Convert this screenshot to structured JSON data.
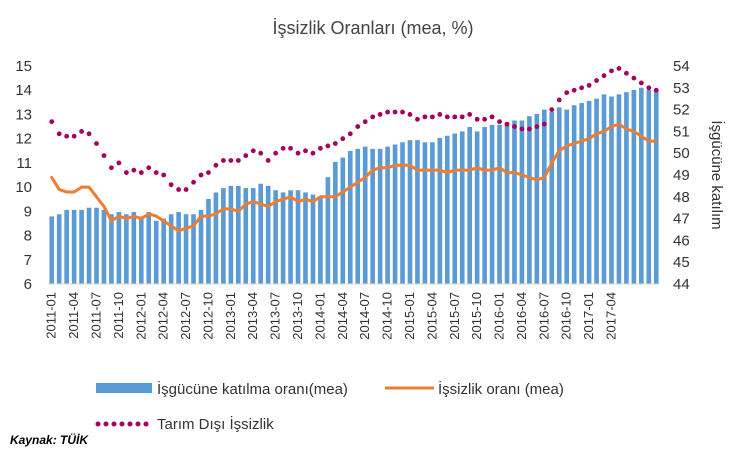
{
  "chart_data": {
    "type": "bar",
    "title": "İşsizlik Oranları (mea, %)",
    "y2label": "İşgücüne katılım",
    "source": "Kaynak: TÜİK",
    "ylim": [
      6,
      15
    ],
    "y2lim": [
      44,
      54
    ],
    "yticks": [
      6,
      7,
      8,
      9,
      10,
      11,
      12,
      13,
      14,
      15
    ],
    "y2ticks": [
      44,
      45,
      46,
      47,
      48,
      49,
      50,
      51,
      52,
      53,
      54
    ],
    "xtick_labels": [
      "2011-01",
      "2011-04",
      "2011-07",
      "2011-10",
      "2012-01",
      "2012-04",
      "2012-07",
      "2012-10",
      "2013-01",
      "2013-04",
      "2013-07",
      "2013-10",
      "2014-01",
      "2014-04",
      "2014-07",
      "2014-10",
      "2015-01",
      "2015-04",
      "2015-07",
      "2015-10",
      "2016-01",
      "2016-04",
      "2016-07",
      "2016-10",
      "2017-01",
      "2017-04"
    ],
    "legend": [
      {
        "name": "İşgücüne katılma oranı(mea)",
        "color": "#5b9bd5",
        "kind": "bar"
      },
      {
        "name": "İşsizlik oranı (mea)",
        "color": "#ed7d31",
        "kind": "line"
      },
      {
        "name": "Tarım Dışı İşsizlik",
        "color": "#a5005a",
        "kind": "dots"
      }
    ],
    "series": [
      {
        "name": "İşgücüne katılma oranı(mea)",
        "axis": "right",
        "kind": "bar",
        "values": [
          47.1,
          47.2,
          47.4,
          47.4,
          47.4,
          47.5,
          47.5,
          47.4,
          47.2,
          47.3,
          47.2,
          47.3,
          47.1,
          47.3,
          46.9,
          47.0,
          47.2,
          47.3,
          47.2,
          47.2,
          47.4,
          47.9,
          48.2,
          48.4,
          48.5,
          48.5,
          48.4,
          48.4,
          48.6,
          48.5,
          48.3,
          48.2,
          48.3,
          48.3,
          48.2,
          48.1,
          48.0,
          48.9,
          49.6,
          49.8,
          50.1,
          50.2,
          50.3,
          50.2,
          50.2,
          50.3,
          50.4,
          50.5,
          50.6,
          50.6,
          50.5,
          50.5,
          50.7,
          50.8,
          50.9,
          51.0,
          51.2,
          51.0,
          51.2,
          51.3,
          51.3,
          51.4,
          51.5,
          51.5,
          51.7,
          51.8,
          52.0,
          51.9,
          52.1,
          52.0,
          52.2,
          52.3,
          52.4,
          52.5,
          52.7,
          52.6,
          52.7,
          52.8,
          52.9,
          53.0,
          52.9,
          52.9
        ]
      },
      {
        "name": "İşsizlik oranı (mea)",
        "axis": "left",
        "kind": "line",
        "values": [
          10.4,
          9.9,
          9.8,
          9.8,
          10.0,
          10.0,
          9.6,
          9.2,
          8.6,
          8.8,
          8.7,
          8.8,
          8.7,
          8.9,
          8.8,
          8.6,
          8.4,
          8.2,
          8.3,
          8.4,
          8.8,
          8.8,
          8.9,
          9.1,
          9.1,
          9.0,
          9.3,
          9.4,
          9.3,
          9.2,
          9.4,
          9.5,
          9.6,
          9.4,
          9.5,
          9.4,
          9.6,
          9.6,
          9.6,
          9.8,
          10.0,
          10.2,
          10.4,
          10.7,
          10.8,
          10.8,
          10.9,
          10.9,
          10.9,
          10.7,
          10.7,
          10.7,
          10.7,
          10.6,
          10.7,
          10.7,
          10.7,
          10.8,
          10.7,
          10.7,
          10.8,
          10.6,
          10.6,
          10.5,
          10.4,
          10.3,
          10.4,
          11.0,
          11.5,
          11.7,
          11.8,
          11.9,
          12.0,
          12.2,
          12.3,
          12.5,
          12.6,
          12.4,
          12.3,
          12.1,
          11.9,
          11.9
        ]
      },
      {
        "name": "Tarım Dışı İşsizlik",
        "axis": "left",
        "kind": "dots",
        "values": [
          12.7,
          12.2,
          12.1,
          12.1,
          12.3,
          12.2,
          11.8,
          11.3,
          10.8,
          11.0,
          10.6,
          10.7,
          10.6,
          10.8,
          10.6,
          10.5,
          10.1,
          9.9,
          9.9,
          10.2,
          10.5,
          10.6,
          10.9,
          11.1,
          11.1,
          11.1,
          11.3,
          11.5,
          11.4,
          11.1,
          11.4,
          11.6,
          11.6,
          11.4,
          11.5,
          11.4,
          11.6,
          11.7,
          11.8,
          12.0,
          12.2,
          12.5,
          12.7,
          12.9,
          13.0,
          13.1,
          13.1,
          13.1,
          13.0,
          12.8,
          12.9,
          12.9,
          13.0,
          12.9,
          12.9,
          12.9,
          13.0,
          12.8,
          12.8,
          12.9,
          12.7,
          12.6,
          12.5,
          12.4,
          12.4,
          12.5,
          12.6,
          13.2,
          13.6,
          13.9,
          14.0,
          14.1,
          14.2,
          14.4,
          14.6,
          14.8,
          14.9,
          14.7,
          14.5,
          14.3,
          14.1,
          14.0
        ]
      }
    ]
  }
}
